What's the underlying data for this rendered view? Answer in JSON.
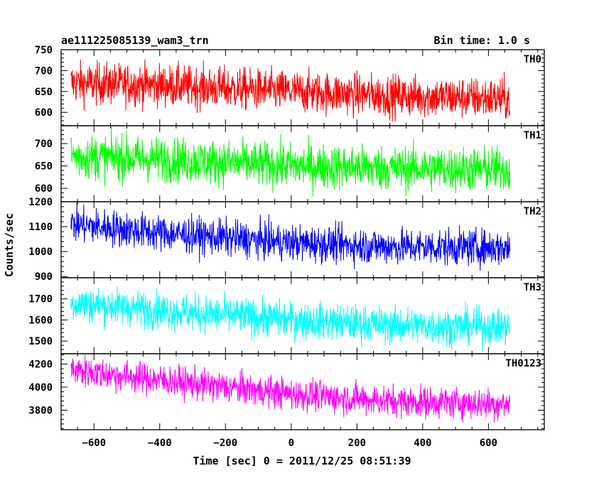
{
  "header": {
    "title": "ae111225085139_wam3_trn",
    "bin_time": "Bin time: 1.0 s"
  },
  "axes": {
    "xlabel": "Time [sec] 0 = 2011/12/25 08:51:39",
    "ylabel": "Counts/sec",
    "xlim": [
      -700,
      770
    ],
    "xticks": [
      -600,
      -400,
      -200,
      0,
      200,
      400,
      600
    ]
  },
  "chart_data": {
    "type": "line",
    "title": "ae111225085139_wam3_trn",
    "subtitle": "Bin time: 1.0 s",
    "xlabel": "Time [sec] 0 = 2011/12/25 08:51:39",
    "ylabel": "Counts/sec",
    "x_range": [
      -670,
      665
    ],
    "bin_time_s": 1.0,
    "grid": false,
    "panels": [
      {
        "name": "TH0",
        "color": "#ff0000",
        "ylim": [
          568,
          750
        ],
        "yticks": [
          600,
          650,
          700,
          750
        ],
        "trend": [
          [
            -670,
            670
          ],
          [
            -400,
            665
          ],
          [
            0,
            650
          ],
          [
            300,
            640
          ],
          [
            665,
            632
          ]
        ],
        "scatter_half_width": 55
      },
      {
        "name": "TH1",
        "color": "#00ff00",
        "ylim": [
          570,
          740
        ],
        "yticks": [
          600,
          650,
          700
        ],
        "trend": [
          [
            -670,
            672
          ],
          [
            -400,
            665
          ],
          [
            0,
            650
          ],
          [
            300,
            645
          ],
          [
            665,
            642
          ]
        ],
        "scatter_half_width": 55
      },
      {
        "name": "TH2",
        "color": "#0000ff",
        "ylim": [
          895,
          1200
        ],
        "yticks": [
          900,
          1000,
          1100,
          1200
        ],
        "trend": [
          [
            -670,
            1110
          ],
          [
            -400,
            1075
          ],
          [
            0,
            1035
          ],
          [
            300,
            1020
          ],
          [
            665,
            1015
          ]
        ],
        "scatter_half_width": 80
      },
      {
        "name": "TH3",
        "color": "#00ffff",
        "ylim": [
          1440,
          1800
        ],
        "yticks": [
          1500,
          1600,
          1700
        ],
        "trend": [
          [
            -670,
            1680
          ],
          [
            -400,
            1645
          ],
          [
            0,
            1600
          ],
          [
            300,
            1575
          ],
          [
            665,
            1565
          ]
        ],
        "scatter_half_width": 95
      },
      {
        "name": "TH0123",
        "color": "#ff00ff",
        "ylim": [
          3630,
          4290
        ],
        "yticks": [
          3800,
          4000,
          4200
        ],
        "trend": [
          [
            -670,
            4150
          ],
          [
            -400,
            4060
          ],
          [
            0,
            3940
          ],
          [
            300,
            3880
          ],
          [
            665,
            3850
          ]
        ],
        "scatter_half_width": 150
      }
    ]
  }
}
